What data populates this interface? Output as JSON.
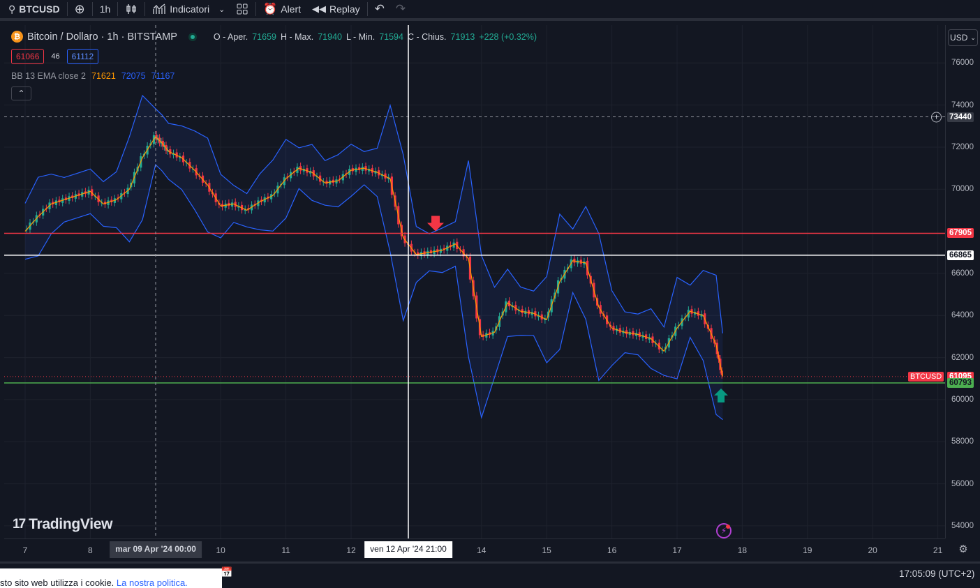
{
  "toolbar": {
    "symbol": "BTCUSD",
    "interval": "1h",
    "indicators_label": "Indicatori",
    "alert_label": "Alert",
    "replay_label": "Replay"
  },
  "legend": {
    "title": "Bitcoin / Dollaro · 1h · BITSTAMP",
    "open_label": "O - Aper.",
    "open": "71659",
    "high_label": "H - Max.",
    "high": "71940",
    "low_label": "L - Min.",
    "low": "71594",
    "close_label": "C - Chius.",
    "close": "71913",
    "change": "+228 (+0.32%)"
  },
  "bidask": {
    "bid": "61066",
    "spread": "46",
    "ask": "61112"
  },
  "indicator": {
    "name": "BB 13 EMA close 2",
    "basis": "71621",
    "upper": "72075",
    "lower": "71167"
  },
  "currency": "USD",
  "price_labels": {
    "crosshair": "73440",
    "resistance": "67905",
    "white_line": "66865",
    "symbol_tag": "BTCUSD",
    "last": "61095",
    "support": "60793"
  },
  "time_cross": {
    "left": "mar 09 Apr '24   00:00",
    "right": "ven 12 Apr '24   21:00"
  },
  "watermark": "TradingView",
  "cookie": {
    "text": "sto sito web utilizza i cookie. ",
    "link": "La nostra politica."
  },
  "clock": "17:05:09 (UTC+2)",
  "colors": {
    "up": "#22ab94",
    "down": "#f23645",
    "band": "#2962ff",
    "basis": "#ff9800",
    "support": "#4caf50",
    "resistance": "#f23645"
  },
  "chart_data": {
    "type": "line",
    "title": "Bitcoin / Dollaro · 1h · BITSTAMP",
    "x_ticks": [
      "7",
      "8",
      "10",
      "11",
      "12",
      "14",
      "15",
      "16",
      "17",
      "18",
      "19",
      "20",
      "21"
    ],
    "y_ticks": [
      54000,
      56000,
      58000,
      60000,
      62000,
      64000,
      66000,
      70000,
      72000,
      74000,
      76000
    ],
    "ylim": [
      53400,
      77800
    ],
    "horizontal_lines": [
      67905,
      66865,
      60793
    ],
    "crosshair_price": 73440,
    "last_price": 61095,
    "series": [
      {
        "name": "",
        "x": [
          7.0,
          7.2,
          7.4,
          7.6,
          7.8,
          8.0,
          8.2,
          8.4,
          8.6,
          8.8,
          9.0,
          9.1,
          9.2,
          9.4,
          9.6,
          9.8,
          10.0,
          10.2,
          10.4,
          10.6,
          10.8,
          11.0,
          11.2,
          11.4,
          11.6,
          11.8,
          12.0,
          12.2,
          12.4,
          12.6,
          12.8,
          13.0,
          13.2,
          13.4,
          13.6,
          13.8,
          14.0,
          14.2,
          14.4,
          14.6,
          14.8,
          15.0,
          15.2,
          15.4,
          15.6,
          15.8,
          16.0,
          16.2,
          16.4,
          16.6,
          16.8,
          17.0,
          17.2,
          17.4,
          17.6,
          17.7
        ],
        "values": [
          68000,
          68700,
          69300,
          69500,
          69700,
          69900,
          69300,
          69500,
          70000,
          71500,
          72500,
          72200,
          71800,
          71500,
          70900,
          70200,
          69200,
          69300,
          69000,
          69400,
          69700,
          70500,
          71000,
          70800,
          70300,
          70400,
          70900,
          71000,
          70800,
          70500,
          67700,
          66900,
          67000,
          67100,
          67400,
          66700,
          63000,
          63200,
          64600,
          64200,
          64100,
          63800,
          65600,
          66600,
          66500,
          64400,
          63400,
          63200,
          63100,
          62900,
          62300,
          63400,
          64200,
          64000,
          62600,
          61100
        ]
      }
    ]
  }
}
